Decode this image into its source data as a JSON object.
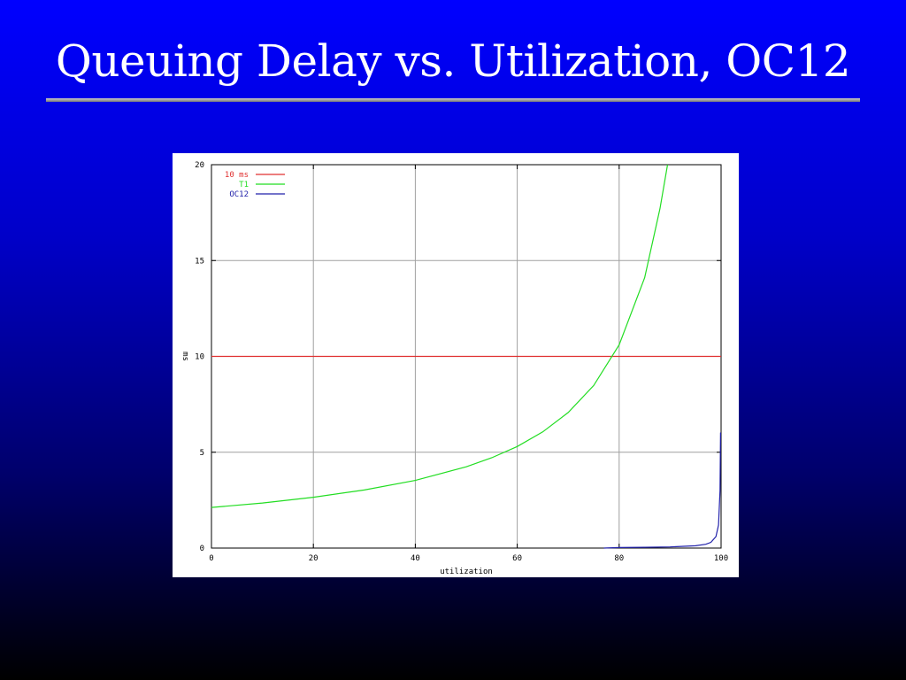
{
  "slide": {
    "title": "Queuing Delay vs. Utilization, OC12"
  },
  "colors": {
    "background_top": "#0000ff",
    "background_bottom": "#000000",
    "grid": "#a0a0a0",
    "ref_line": "#e03030",
    "t1": "#22dd22",
    "oc12": "#2222aa"
  },
  "chart_data": {
    "type": "line",
    "title": "",
    "xlabel": "utilization",
    "ylabel": "ms",
    "xlim": [
      0,
      100
    ],
    "ylim": [
      0,
      20
    ],
    "xticks": [
      0,
      20,
      40,
      60,
      80,
      100
    ],
    "yticks": [
      0,
      5,
      10,
      15,
      20
    ],
    "grid": true,
    "legend_position": "top-left",
    "series": [
      {
        "name": "10 ms",
        "color": "#e03030",
        "x": [
          0,
          100
        ],
        "y": [
          10,
          10
        ]
      },
      {
        "name": "T1",
        "color": "#22dd22",
        "x": [
          0,
          10,
          20,
          30,
          40,
          50,
          55,
          60,
          65,
          70,
          75,
          80,
          85,
          88,
          89.5
        ],
        "y": [
          2.12,
          2.35,
          2.65,
          3.03,
          3.53,
          4.24,
          4.71,
          5.3,
          6.06,
          7.07,
          8.48,
          10.6,
          14.1,
          17.7,
          20.0
        ]
      },
      {
        "name": "OC12",
        "color": "#2222aa",
        "x": [
          77,
          80,
          85,
          90,
          95,
          97,
          98,
          99,
          99.5,
          99.8,
          99.9,
          100
        ],
        "y": [
          0.0,
          0.03,
          0.04,
          0.06,
          0.12,
          0.2,
          0.3,
          0.6,
          1.2,
          3.0,
          6.0,
          6.0
        ]
      }
    ]
  }
}
